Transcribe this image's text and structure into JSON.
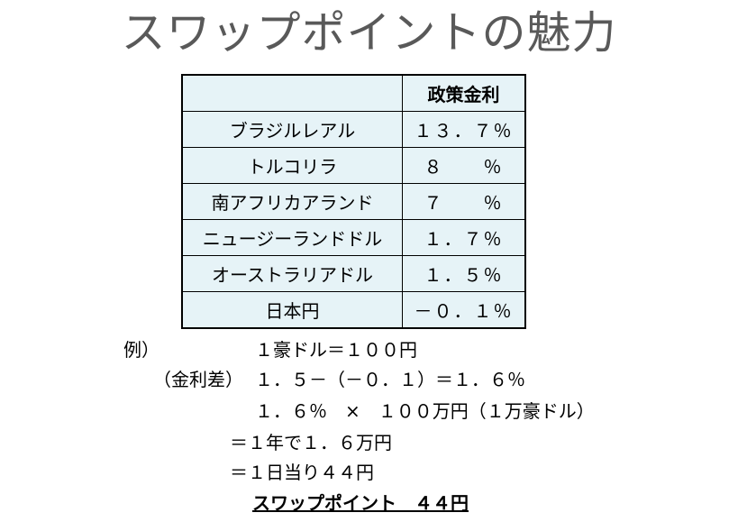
{
  "title": "スワップポイントの魅力",
  "table": {
    "header": [
      "",
      "政策金利"
    ],
    "rows": [
      {
        "name": "ブラジルレアル",
        "rate": "１３．７％"
      },
      {
        "name": "トルコリラ",
        "rate": "８　　％"
      },
      {
        "name": "南アフリカアランド",
        "rate": "７　　％"
      },
      {
        "name": "ニュージーランドドル",
        "rate": "１．７％"
      },
      {
        "name": "オーストラリアドル",
        "rate": "１．５％"
      },
      {
        "name": "日本円",
        "rate": "－０．１％"
      }
    ]
  },
  "example": {
    "label": "例）",
    "line1": "１豪ドル＝１００円",
    "rate_diff_label": "（金利差）",
    "rate_diff_calc": "１．５－（－０．１）＝１．６％",
    "line3": "１．６％　×　１００万円（１万豪ドル）",
    "line4": "＝１年で１．６万円",
    "line5": "＝１日当り４４円",
    "result": "スワップポイント　４４円"
  }
}
